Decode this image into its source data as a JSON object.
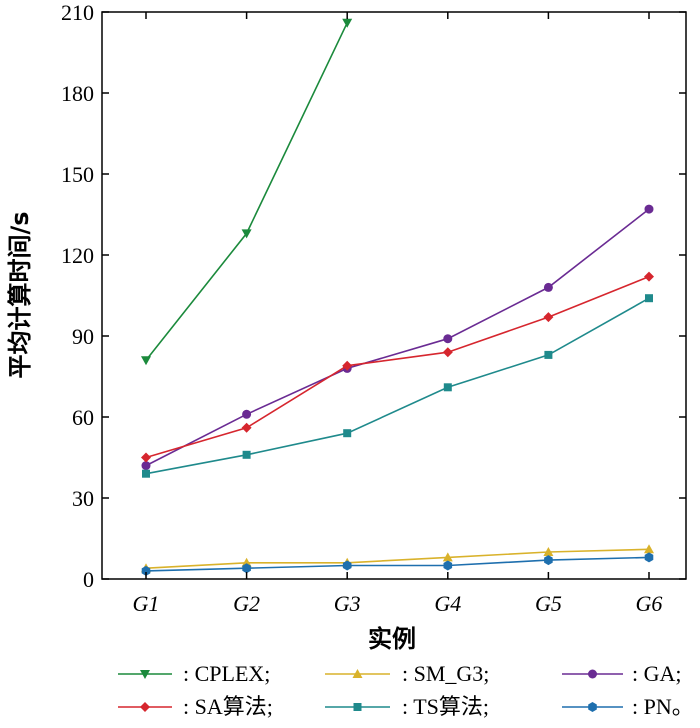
{
  "chart_data": {
    "type": "line",
    "xlabel": "实例",
    "ylabel": "平均计算时间/s",
    "ylim": [
      0,
      210
    ],
    "yticks": [
      "0",
      "30",
      "60",
      "90",
      "120",
      "150",
      "180",
      "210"
    ],
    "categories": [
      "G1",
      "G2",
      "G3",
      "G4",
      "G5",
      "G6"
    ],
    "series": [
      {
        "name": "CPLEX",
        "legend_label": ": CPLEX;",
        "color": "#1b8a3c",
        "marker": "triangle-down",
        "values": [
          81,
          128,
          206,
          null,
          null,
          null
        ]
      },
      {
        "name": "SM_G3",
        "legend_label": ": SM_G3;",
        "color": "#d9b22b",
        "marker": "triangle-up",
        "values": [
          4,
          6,
          6,
          8,
          10,
          11
        ]
      },
      {
        "name": "GA",
        "legend_label": ": GA;",
        "color": "#6a2b93",
        "marker": "circle",
        "values": [
          42,
          61,
          78,
          89,
          108,
          137
        ]
      },
      {
        "name": "SA算法",
        "legend_label": ": SA算法;",
        "color": "#d6262e",
        "marker": "diamond",
        "values": [
          45,
          56,
          79,
          84,
          97,
          112
        ]
      },
      {
        "name": "TS算法",
        "legend_label": ": TS算法;",
        "color": "#1f8a8c",
        "marker": "square",
        "values": [
          39,
          46,
          54,
          71,
          83,
          104
        ]
      },
      {
        "name": "PN",
        "legend_label": ": PN。",
        "color": "#1e6fae",
        "marker": "hexagon",
        "values": [
          3,
          4,
          5,
          5,
          7,
          8
        ]
      }
    ],
    "grid": false,
    "legend_position": "bottom"
  }
}
